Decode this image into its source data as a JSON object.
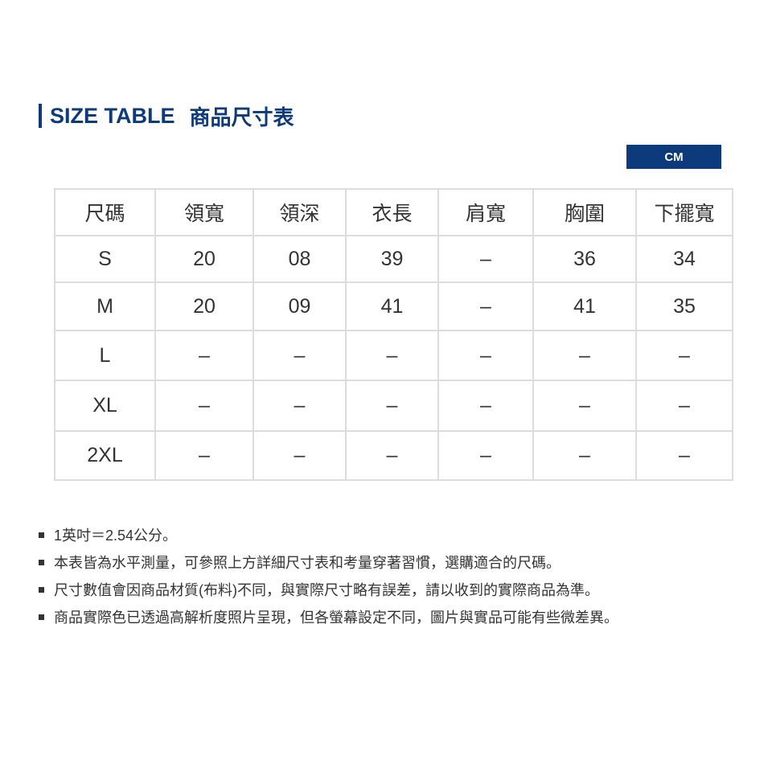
{
  "title": {
    "en": "SIZE TABLE",
    "zh": "商品尺寸表"
  },
  "unit": "CM",
  "table": {
    "headers": [
      "尺碼",
      "領寬",
      "領深",
      "衣長",
      "肩寬",
      "胸圍",
      "下擺寬"
    ],
    "rows": [
      [
        "S",
        "20",
        "08",
        "39",
        "–",
        "36",
        "34"
      ],
      [
        "M",
        "20",
        "09",
        "41",
        "–",
        "41",
        "35"
      ],
      [
        "L",
        "–",
        "–",
        "–",
        "–",
        "–",
        "–"
      ],
      [
        "XL",
        "–",
        "–",
        "–",
        "–",
        "–",
        "–"
      ],
      [
        "2XL",
        "–",
        "–",
        "–",
        "–",
        "–",
        "–"
      ]
    ]
  },
  "notes": [
    "1英吋＝2.54公分。",
    "本表皆為水平測量，可參照上方詳細尺寸表和考量穿著習慣，選購適合的尺碼。",
    "尺寸數值會因商品材質(布料)不同，與實際尺寸略有誤差，請以收到的實際商品為準。",
    "商品實際色已透過高解析度照片呈現，但各螢幕設定不同，圖片與實品可能有些微差異。"
  ],
  "colors": {
    "brand": "#0d3a7a"
  }
}
